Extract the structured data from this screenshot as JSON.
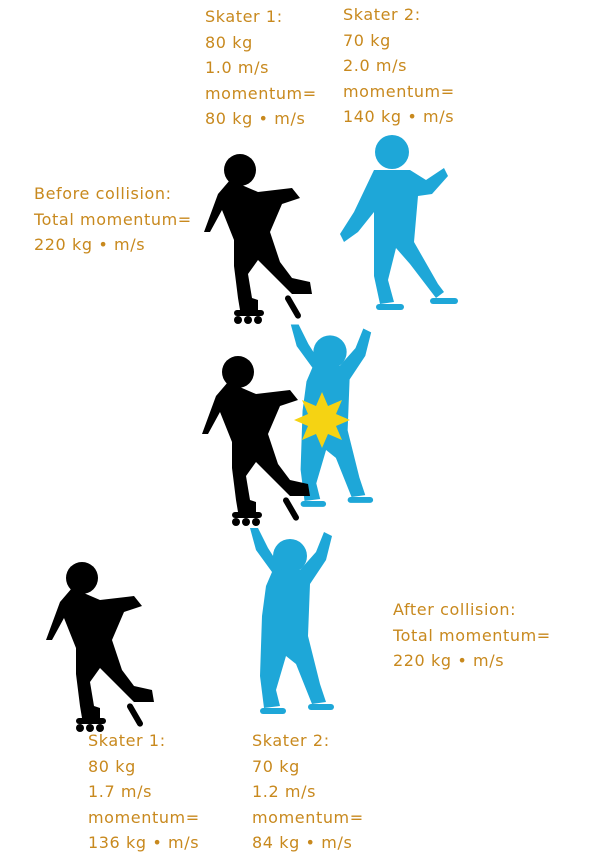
{
  "colors": {
    "label": "#c8891e",
    "skater_1": "#000000",
    "skater_2": "#1ea7d8",
    "impact": "#f5d313"
  },
  "before": {
    "skater_1": {
      "title": "Skater 1:",
      "mass": "80 kg",
      "velocity": "1.0 m/s",
      "momentum_label": "momentum=",
      "momentum_value": "80 kg • m/s"
    },
    "skater_2": {
      "title": "Skater 2:",
      "mass": "70 kg",
      "velocity": "2.0 m/s",
      "momentum_label": "momentum=",
      "momentum_value": "140 kg • m/s"
    },
    "total": {
      "heading": "Before collision:",
      "label": "Total momentum=",
      "value": "220 kg • m/s"
    }
  },
  "after": {
    "skater_1": {
      "title": "Skater 1:",
      "mass": "80 kg",
      "velocity": "1.7 m/s",
      "momentum_label": "momentum=",
      "momentum_value": "136 kg • m/s"
    },
    "skater_2": {
      "title": "Skater 2:",
      "mass": "70 kg",
      "velocity": "1.2 m/s",
      "momentum_label": "momentum=",
      "momentum_value": "84 kg • m/s"
    },
    "total": {
      "heading": "After collision:",
      "label": "Total momentum=",
      "value": "220 kg • m/s"
    }
  }
}
